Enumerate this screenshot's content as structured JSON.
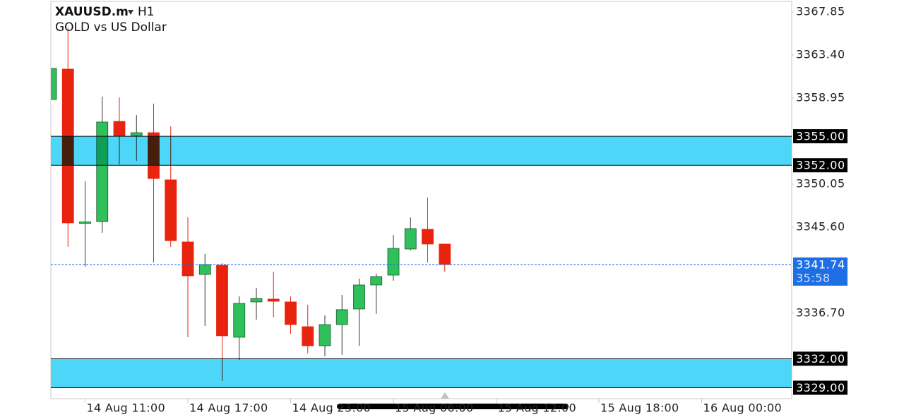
{
  "chart_data": {
    "type": "candlestick",
    "symbol": "XAUUSD.m",
    "timeframe": "H1",
    "title": "GOLD vs US Dollar",
    "categories": [
      null,
      null,
      "14 Aug 11:00",
      null,
      null,
      null,
      null,
      null,
      "14 Aug 17:00",
      null,
      null,
      null,
      null,
      null,
      "14 Aug 23:00",
      null,
      null,
      null,
      null,
      null,
      "15 Aug 06:00",
      null,
      null,
      null,
      null,
      null,
      "15 Aug 12:00",
      null,
      null,
      null,
      null,
      null,
      "15 Aug 18:00",
      null,
      null,
      null,
      null,
      null,
      "16 Aug 00:00",
      null,
      null,
      null,
      null,
      null
    ],
    "open": [
      3358.8,
      3361.94,
      3346.0,
      3346.18,
      3356.54,
      3355.08,
      3355.37,
      3350.49,
      3344.07,
      3340.71,
      3341.66,
      3334.22,
      3337.87,
      3338.16,
      3337.87,
      3335.31,
      3333.34,
      3335.53,
      3337.14,
      3339.62,
      3340.64,
      3343.34,
      3345.38,
      3343.85,
      null,
      null,
      null,
      null,
      null,
      null,
      null,
      null,
      null,
      null,
      null,
      null,
      null,
      null,
      null,
      null,
      null,
      null,
      null,
      null
    ],
    "high": [
      3362.01,
      3366.17,
      3350.34,
      3359.1,
      3359.02,
      3357.2,
      3358.37,
      3356.03,
      3346.62,
      3342.83,
      3341.88,
      3338.45,
      3339.33,
      3341.0,
      3338.45,
      3337.58,
      3336.48,
      3338.6,
      3340.27,
      3340.79,
      3344.8,
      3346.62,
      3348.66,
      3343.85,
      null,
      null,
      null,
      null,
      null,
      null,
      null,
      null,
      null,
      null,
      null,
      null,
      null,
      null,
      null,
      null,
      null,
      null,
      null,
      null
    ],
    "low": [
      3358.8,
      3343.56,
      3341.52,
      3345.02,
      3352.09,
      3352.46,
      3341.95,
      3343.56,
      3334.22,
      3335.39,
      3329.7,
      3331.88,
      3336.04,
      3336.26,
      3334.58,
      3332.54,
      3332.25,
      3332.4,
      3333.34,
      3336.63,
      3340.06,
      3343.19,
      3341.95,
      3341.0,
      null,
      null,
      null,
      null,
      null,
      null,
      null,
      null,
      null,
      null,
      null,
      null,
      null,
      null,
      null,
      null,
      null,
      null,
      null,
      null
    ],
    "close": [
      3362.01,
      3346.04,
      3346.15,
      3356.47,
      3355.01,
      3355.37,
      3350.63,
      3344.21,
      3340.57,
      3341.73,
      3334.37,
      3337.72,
      3338.23,
      3337.94,
      3335.53,
      3333.34,
      3335.53,
      3337.07,
      3339.62,
      3340.49,
      3343.41,
      3345.45,
      3343.85,
      3341.74,
      null,
      null,
      null,
      null,
      null,
      null,
      null,
      null,
      null,
      null,
      null,
      null,
      null,
      null,
      null,
      null,
      null,
      null,
      null,
      null
    ],
    "up_color": "#2fbf5b",
    "down_color": "#e8230e",
    "ylim": [
      3327.87,
      3368.94
    ],
    "yticks": [
      3367.85,
      {
        "value": 3363.4,
        "label": "3363.40"
      },
      3358.95,
      3350.05,
      {
        "value": 3345.6,
        "label": "3345.60"
      },
      {
        "value": 3336.7,
        "label": "3336.70"
      }
    ],
    "grid": false,
    "zone_color": "#4dd6f7",
    "zones": [
      {
        "top": {
          "value": 3355,
          "label": "3355.00"
        },
        "bottom": {
          "value": 3352,
          "label": "3352.00"
        }
      },
      {
        "top": {
          "value": 3332,
          "label": "3332.00"
        },
        "bottom": {
          "value": 3329,
          "label": "3329.00"
        }
      }
    ],
    "current_price": 3341.74,
    "current_price_color": "#1e6fe6",
    "countdown": "35:58"
  }
}
